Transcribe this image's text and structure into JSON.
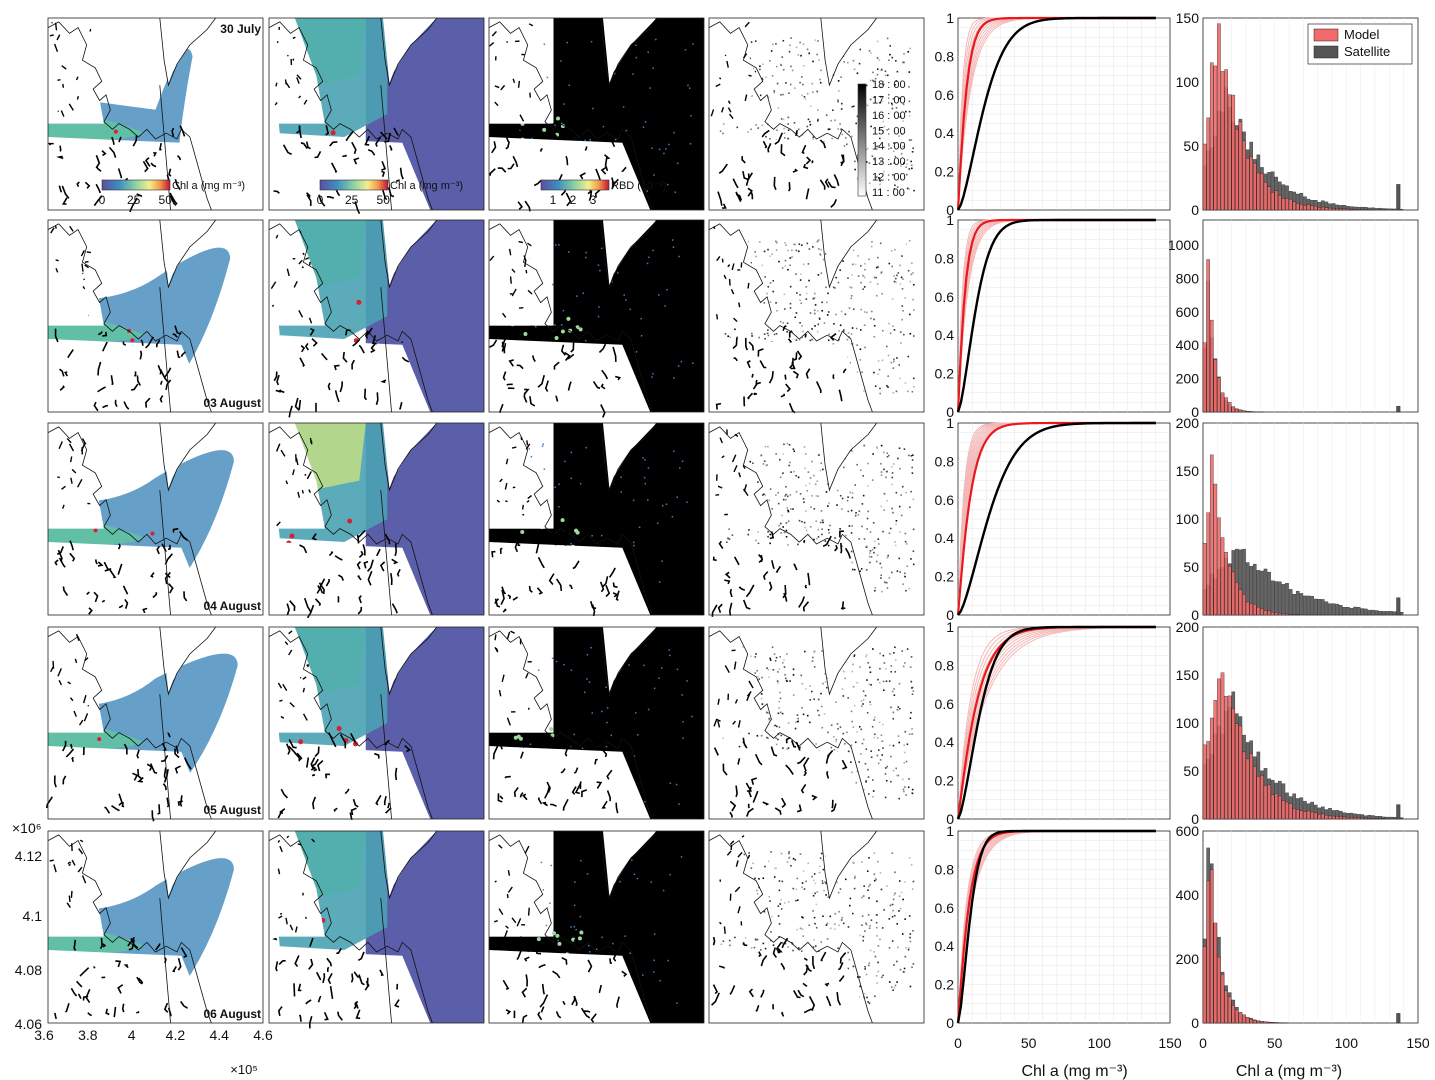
{
  "chart_data": {
    "type": "figure-grid",
    "rows": [
      {
        "date_label": "30 July",
        "date_corner": "top-right",
        "cdf_ytick_labels": [
          "0",
          "0.2",
          "0.4",
          "0.6",
          "0.8",
          "1"
        ],
        "hist_ytick_labels": [
          "0",
          "50",
          "100",
          "150"
        ],
        "hist_ylim": [
          0,
          150
        ]
      },
      {
        "date_label": "03 August",
        "date_corner": "bottom-right",
        "cdf_ytick_labels": [
          "0",
          "0.2",
          "0.4",
          "0.6",
          "0.8",
          "1"
        ],
        "hist_ytick_labels": [
          "0",
          "200",
          "400",
          "600",
          "800",
          "1000"
        ],
        "hist_ylim": [
          0,
          1150
        ]
      },
      {
        "date_label": "04 August",
        "date_corner": "bottom-right",
        "cdf_ytick_labels": [
          "0",
          "0.2",
          "0.4",
          "0.6",
          "0.8",
          "1"
        ],
        "hist_ytick_labels": [
          "0",
          "50",
          "100",
          "150",
          "200"
        ],
        "hist_ylim": [
          0,
          200
        ]
      },
      {
        "date_label": "05 August",
        "date_corner": "bottom-right",
        "cdf_ytick_labels": [
          "0",
          "0.2",
          "0.4",
          "0.6",
          "0.8",
          "1"
        ],
        "hist_ytick_labels": [
          "0",
          "50",
          "100",
          "150",
          "200"
        ],
        "hist_ylim": [
          0,
          200
        ]
      },
      {
        "date_label": "06 August",
        "date_corner": "bottom-right",
        "cdf_ytick_labels": [
          "0",
          "0.2",
          "0.4",
          "0.6",
          "0.8",
          "1"
        ],
        "hist_ytick_labels": [
          "0",
          "200",
          "400",
          "600"
        ],
        "hist_ylim": [
          0,
          600
        ]
      }
    ],
    "colorbars": {
      "model_chl": {
        "label": "Chl a (mg m⁻³)",
        "ticks": [
          "0",
          "25",
          "50"
        ]
      },
      "satellite_chl": {
        "label": "Chl a (mg m⁻³)",
        "ticks": [
          "0",
          "25",
          "50"
        ]
      },
      "rbd": {
        "label": "RBD (10⁻³)",
        "ticks": [
          "1",
          "2",
          "3"
        ]
      },
      "time": {
        "ticks": [
          "18 : 00",
          "17 : 00",
          "16 : 00",
          "15 : 00",
          "14 : 00",
          "13 : 00",
          "12 : 00",
          "11 : 00"
        ]
      }
    },
    "map_axes": {
      "x_ticks": [
        "3.6",
        "3.8",
        "4",
        "4.2",
        "4.4",
        "4.6"
      ],
      "x_exponent": "×10⁵",
      "y_ticks": [
        "4.12",
        "4.1",
        "4.08",
        "4.06"
      ],
      "y_exponent": "×10⁶"
    },
    "cdf": {
      "xlim": [
        0,
        150
      ],
      "ylim": [
        0,
        1
      ],
      "x_ticks": [
        "0",
        "50",
        "100",
        "150"
      ],
      "xlabel": "Chl a (mg m⁻³)",
      "colors": {
        "model_hour": "#f4b7b7",
        "model": "#e8191c",
        "satellite": "#000000"
      },
      "model_scale": [
        6,
        5,
        9,
        14,
        8
      ],
      "satellite_scale": [
        22,
        15,
        27,
        18,
        10
      ],
      "hour_scale_range": [
        [
          3,
          9
        ],
        [
          3,
          7
        ],
        [
          4,
          8
        ],
        [
          9,
          20
        ],
        [
          6,
          10
        ]
      ]
    },
    "histogram": {
      "xlim": [
        0,
        150
      ],
      "x_ticks": [
        "0",
        "50",
        "100",
        "150"
      ],
      "xlabel": "Chl a (mg m⁻³)",
      "bin_width": 2.5,
      "legend": {
        "position": "top-right",
        "entries": [
          "Model",
          "Satellite"
        ]
      },
      "colors": {
        "model": "#f26b6b",
        "satellite": "#555555"
      },
      "model_peaks": [
        145,
        1150,
        170,
        170,
        540
      ],
      "satellite_peaks": [
        95,
        1100,
        75,
        125,
        580
      ],
      "model_mode": [
        10,
        1,
        5,
        12,
        3
      ],
      "satellite_mode": [
        16,
        1,
        24,
        18,
        3
      ],
      "outlier_bin_value": [
        20,
        35,
        18,
        15,
        30
      ],
      "outlier_bin_x": 135
    }
  },
  "colors": {
    "land": "#ffffff",
    "coast": "#000000",
    "water_low": "#5b5ea8",
    "water_mid": "#4aa2b2",
    "water_high": "#d8e87a",
    "water_peak": "#d62034"
  }
}
